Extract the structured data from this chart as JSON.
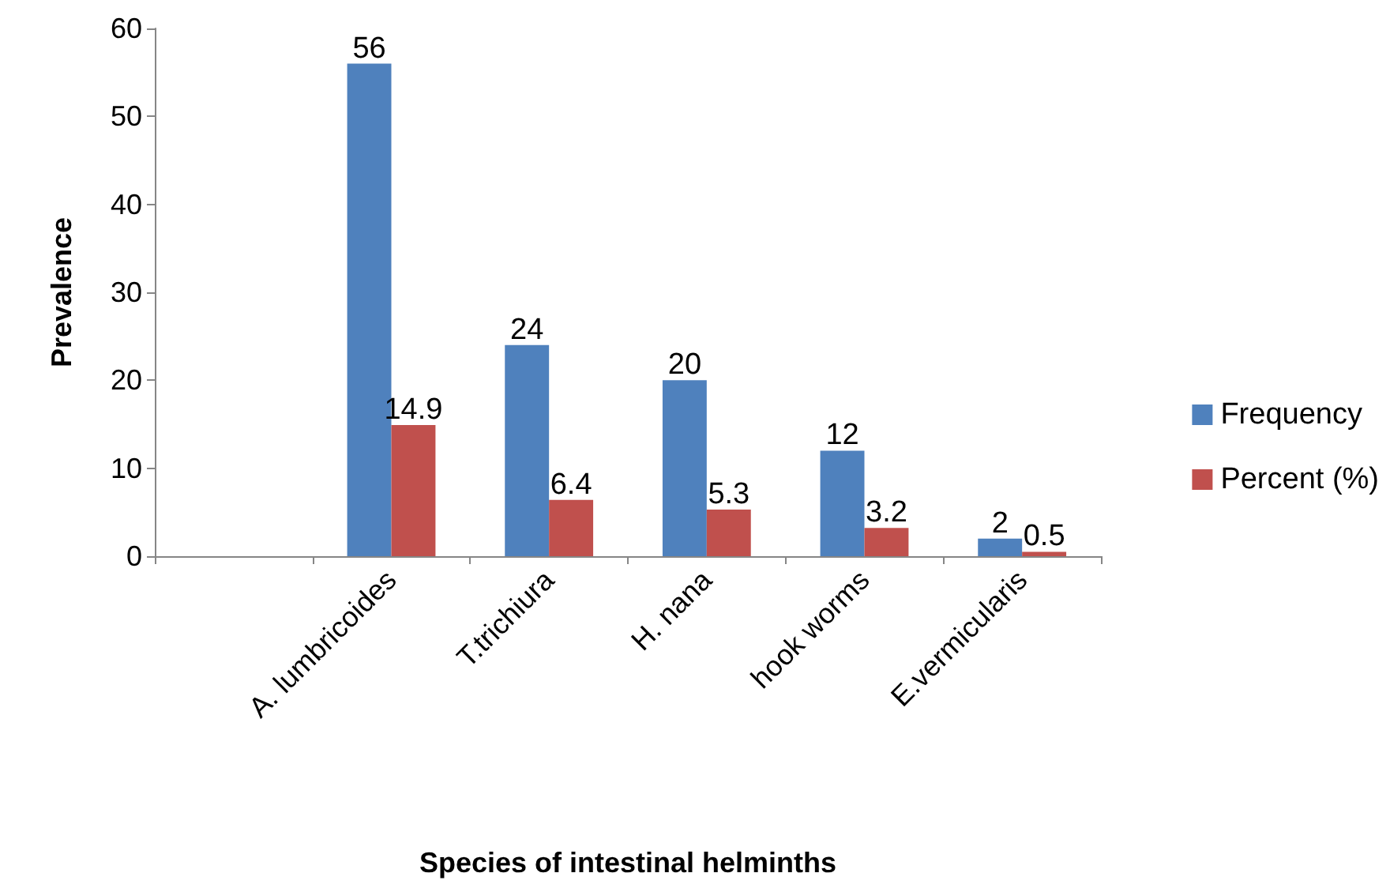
{
  "chart_data": {
    "type": "bar",
    "xlabel": "Species of intestinal helminths",
    "ylabel": "Prevalence",
    "categories": [
      null,
      "A. lumbricoides",
      "T.trichiura",
      "H. nana",
      "hook worms",
      "E.vermicularis"
    ],
    "series": [
      {
        "name": "Frequency",
        "color": "#4f81bd",
        "values": [
          null,
          56,
          24,
          20,
          12,
          2
        ]
      },
      {
        "name": "Percent (%)",
        "color": "#c0504d",
        "values": [
          null,
          14.9,
          6.4,
          5.3,
          3.2,
          0.5
        ]
      }
    ],
    "ylim": [
      0,
      60
    ],
    "yticks": [
      0,
      10,
      20,
      30,
      40,
      50,
      60
    ],
    "grid": false,
    "legend": "right",
    "data_labels": true
  }
}
